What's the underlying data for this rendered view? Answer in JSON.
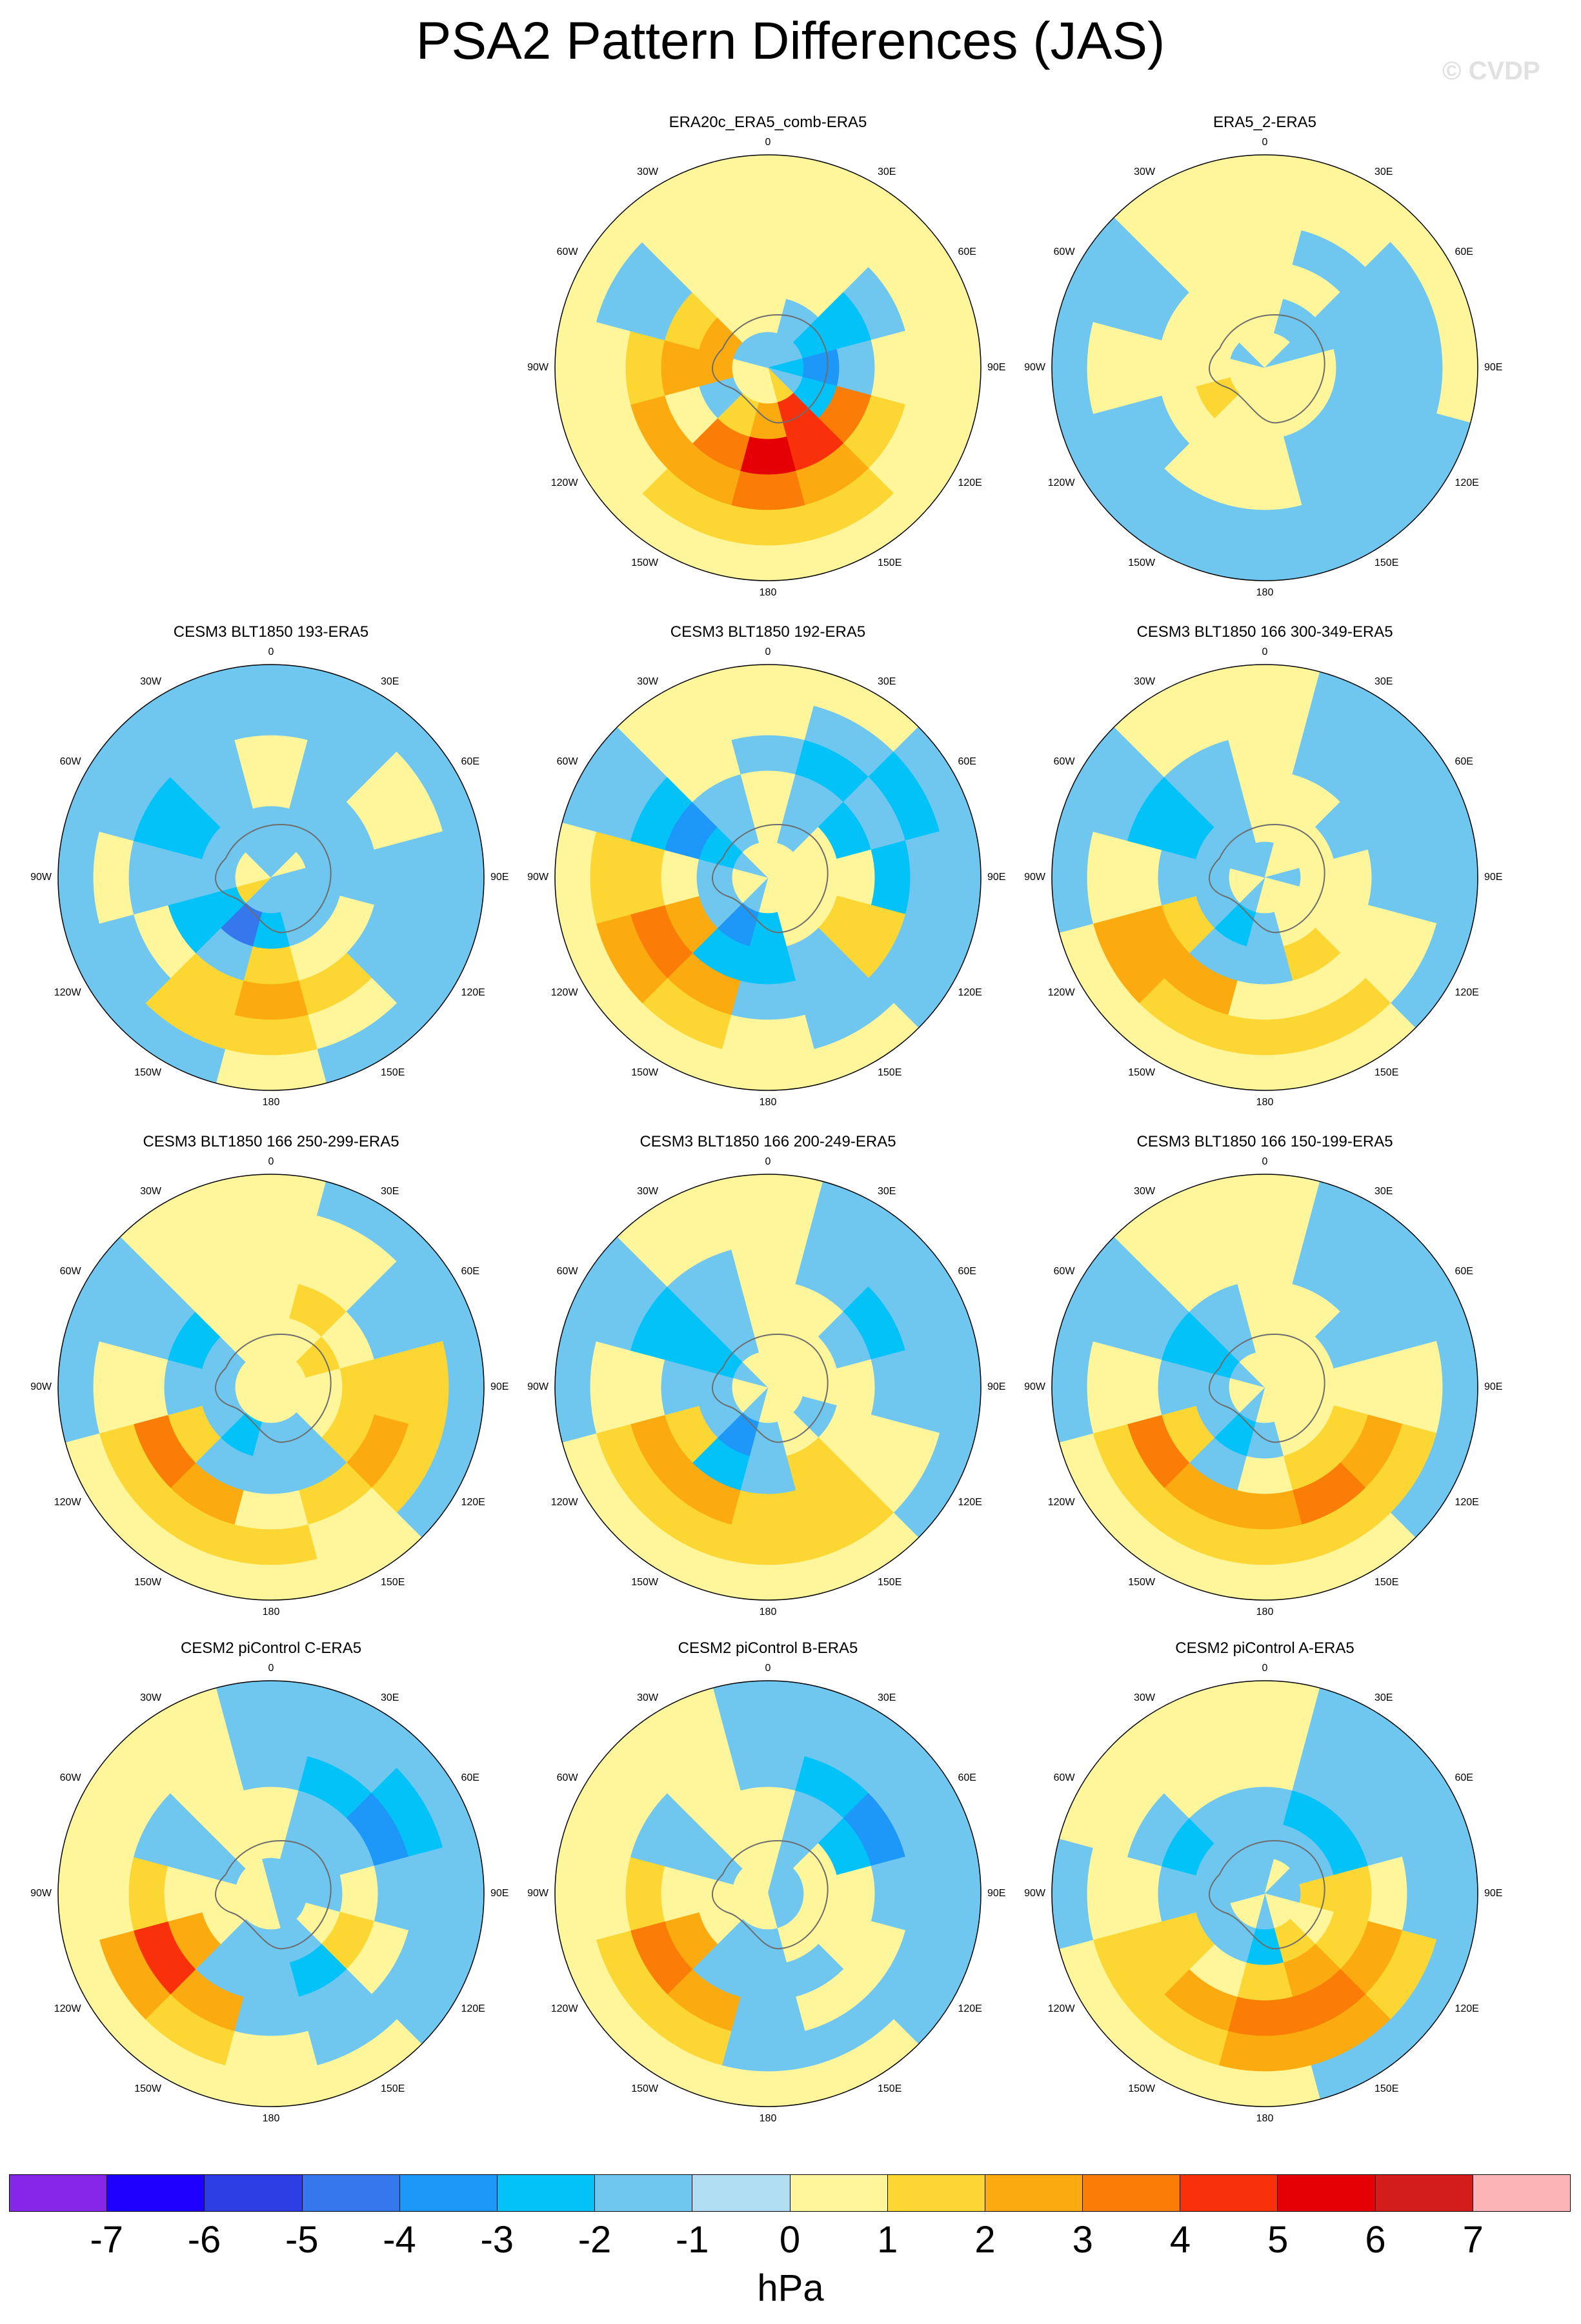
{
  "title": "PSA2 Pattern Differences (JAS)",
  "watermark": "© CVDP",
  "chart_data": {
    "type": "heatmap",
    "projection": "south polar stereographic",
    "longitude_labels": [
      "0",
      "30E",
      "60E",
      "90E",
      "120E",
      "150E",
      "180",
      "150W",
      "120W",
      "90W",
      "60W",
      "30W"
    ],
    "units": "hPa",
    "colorbar": {
      "ticks": [
        -7,
        -6,
        -5,
        -4,
        -3,
        -2,
        -1,
        0,
        1,
        2,
        3,
        4,
        5,
        6,
        7
      ],
      "colors": [
        "#8526e8",
        "#1f00ff",
        "#2b3de3",
        "#3577ec",
        "#1e98f8",
        "#02c2f8",
        "#6fc7f0",
        "#b0ddf1",
        "#fff59b",
        "#fcd632",
        "#fbab0f",
        "#fa7d07",
        "#f9310a",
        "#e40004",
        "#d21d1c",
        "#fcb4b6"
      ]
    },
    "panels": [
      {
        "title": "ERA20c_ERA5_comb-ERA5",
        "row": 0,
        "col": 1,
        "values": [
          [
            0,
            0,
            0,
            0,
            0,
            0,
            0,
            0,
            0,
            0,
            0,
            0
          ],
          [
            0,
            0,
            0,
            0,
            0,
            1,
            1,
            1,
            0,
            0,
            -1,
            0
          ],
          [
            0,
            0,
            -1,
            0,
            1,
            2,
            3,
            2,
            2,
            1,
            -1,
            0
          ],
          [
            0,
            0,
            -2,
            -1,
            3,
            4,
            5,
            3,
            0,
            2,
            1,
            0
          ],
          [
            0,
            -1,
            -2,
            -3,
            -2,
            4,
            2,
            1,
            -1,
            2,
            2,
            0
          ],
          [
            -1,
            -1,
            -1,
            -2,
            -1,
            1,
            0,
            0,
            0,
            0,
            -1,
            -1
          ]
        ]
      },
      {
        "title": "ERA5_2-ERA5",
        "row": 0,
        "col": 2,
        "values": [
          [
            0,
            0,
            0,
            0,
            -1,
            -1,
            -1,
            -1,
            -1,
            -1,
            -1,
            0
          ],
          [
            0,
            0,
            -1,
            -1,
            -1,
            -1,
            -1,
            -1,
            -1,
            0,
            -1,
            0
          ],
          [
            0,
            -1,
            -1,
            -1,
            -1,
            -1,
            0,
            0,
            -1,
            0,
            -1,
            0
          ],
          [
            0,
            0,
            -1,
            -1,
            -1,
            -1,
            0,
            0,
            0,
            0,
            0,
            0
          ],
          [
            0,
            -1,
            -1,
            0,
            0,
            0,
            0,
            0,
            1,
            0,
            0,
            0
          ],
          [
            0,
            0,
            -1,
            0,
            0,
            0,
            0,
            0,
            0,
            0,
            -1,
            0
          ]
        ]
      },
      {
        "title": "CESM3 BLT1850 193-ERA5",
        "row": 1,
        "col": 0,
        "values": [
          [
            -1,
            -1,
            -1,
            -1,
            -1,
            -1,
            0,
            -1,
            -1,
            -1,
            -1,
            -1
          ],
          [
            -1,
            -1,
            0,
            -1,
            -1,
            0,
            1,
            1,
            -1,
            0,
            -1,
            -1
          ],
          [
            0,
            -1,
            0,
            -1,
            -1,
            1,
            2,
            1,
            0,
            -1,
            -2,
            -1
          ],
          [
            0,
            -1,
            -1,
            -1,
            0,
            0,
            1,
            -1,
            -2,
            -1,
            -2,
            -1
          ],
          [
            -1,
            -1,
            -1,
            -1,
            -1,
            -1,
            -2,
            -4,
            -2,
            -1,
            -1,
            -1
          ],
          [
            -1,
            -1,
            0,
            -1,
            -1,
            -1,
            -1,
            -1,
            1,
            0,
            0,
            -1
          ]
        ]
      },
      {
        "title": "CESM3 BLT1850 192-ERA5",
        "row": 1,
        "col": 1,
        "values": [
          [
            0,
            0,
            -1,
            -1,
            -1,
            0,
            0,
            0,
            0,
            0,
            -1,
            0
          ],
          [
            0,
            -1,
            -2,
            -1,
            -1,
            -1,
            0,
            1,
            2,
            1,
            -1,
            0
          ],
          [
            -1,
            -2,
            -1,
            -2,
            1,
            -1,
            -1,
            2,
            3,
            1,
            -2,
            0
          ],
          [
            0,
            -1,
            -2,
            0,
            1,
            -1,
            -2,
            -2,
            2,
            0,
            -3,
            -1
          ],
          [
            0,
            -1,
            0,
            0,
            0,
            0,
            -2,
            -3,
            -1,
            -1,
            -2,
            -1
          ],
          [
            0,
            0,
            0,
            0,
            0,
            0,
            0,
            -1,
            0,
            0,
            -1,
            0
          ]
        ]
      },
      {
        "title": "CESM3 BLT1850 166 300-349-ERA5",
        "row": 1,
        "col": 2,
        "values": [
          [
            0,
            -1,
            -1,
            -1,
            -1,
            0,
            0,
            0,
            0,
            -1,
            -1,
            0
          ],
          [
            0,
            -1,
            -1,
            -1,
            0,
            1,
            1,
            1,
            2,
            0,
            -1,
            0
          ],
          [
            0,
            -1,
            -1,
            -1,
            0,
            0,
            0,
            2,
            2,
            0,
            -2,
            -1
          ],
          [
            0,
            0,
            -1,
            0,
            0,
            1,
            -1,
            -1,
            1,
            -1,
            -2,
            -1
          ],
          [
            0,
            0,
            0,
            0,
            0,
            0,
            -1,
            -2,
            -1,
            -1,
            -1,
            -1
          ],
          [
            -1,
            0,
            0,
            -1,
            0,
            0,
            0,
            -1,
            0,
            0,
            -1,
            -1
          ]
        ]
      },
      {
        "title": "CESM3 BLT1850 166 250-299-ERA5",
        "row": 2,
        "col": 0,
        "values": [
          [
            0,
            -1,
            -1,
            -1,
            -1,
            0,
            0,
            0,
            0,
            -1,
            -1,
            0
          ],
          [
            0,
            0,
            -1,
            1,
            1,
            0,
            1,
            1,
            1,
            0,
            -1,
            0
          ],
          [
            0,
            0,
            -1,
            1,
            2,
            1,
            0,
            2,
            3,
            0,
            -1,
            0
          ],
          [
            0,
            1,
            0,
            1,
            1,
            -1,
            -1,
            -1,
            1,
            -1,
            -2,
            0
          ],
          [
            0,
            0,
            1,
            0,
            0,
            -1,
            -1,
            -2,
            -1,
            -1,
            -1,
            0
          ],
          [
            0,
            0,
            0,
            0,
            0,
            0,
            0,
            0,
            0,
            0,
            0,
            0
          ]
        ]
      },
      {
        "title": "CESM3 BLT1850 166 200-249-ERA5",
        "row": 2,
        "col": 1,
        "values": [
          [
            0,
            -1,
            -1,
            -1,
            -1,
            0,
            0,
            0,
            0,
            -1,
            -1,
            0
          ],
          [
            0,
            -1,
            -1,
            -1,
            0,
            1,
            1,
            1,
            1,
            0,
            -1,
            0
          ],
          [
            0,
            -1,
            -2,
            -1,
            0,
            1,
            1,
            2,
            2,
            0,
            -2,
            -1
          ],
          [
            0,
            0,
            -1,
            0,
            0,
            1,
            -1,
            -2,
            1,
            -1,
            -2,
            -1
          ],
          [
            0,
            0,
            0,
            0,
            -1,
            0,
            -1,
            -3,
            -1,
            -1,
            -2,
            -1
          ],
          [
            0,
            0,
            0,
            0,
            0,
            0,
            0,
            -1,
            0,
            0,
            -1,
            0
          ]
        ]
      },
      {
        "title": "CESM3 BLT1850 166 150-199-ERA5",
        "row": 2,
        "col": 2,
        "values": [
          [
            0,
            -1,
            -1,
            -1,
            -1,
            0,
            0,
            0,
            0,
            -1,
            -1,
            0
          ],
          [
            0,
            -1,
            -1,
            0,
            1,
            1,
            1,
            1,
            1,
            0,
            -1,
            0
          ],
          [
            0,
            -1,
            -1,
            0,
            2,
            3,
            2,
            2,
            3,
            0,
            -1,
            0
          ],
          [
            0,
            0,
            -1,
            0,
            1,
            1,
            0,
            -1,
            1,
            -1,
            -2,
            -1
          ],
          [
            0,
            0,
            0,
            0,
            0,
            0,
            -1,
            -2,
            -1,
            -1,
            -2,
            -1
          ],
          [
            0,
            0,
            0,
            0,
            0,
            0,
            0,
            -1,
            0,
            0,
            -1,
            0
          ]
        ]
      },
      {
        "title": "CESM2 piControl C-ERA5",
        "row": 3,
        "col": 0,
        "values": [
          [
            -1,
            -1,
            -1,
            -1,
            -1,
            0,
            0,
            0,
            0,
            0,
            0,
            0
          ],
          [
            -1,
            -1,
            -2,
            -1,
            -1,
            -1,
            0,
            1,
            2,
            0,
            0,
            0
          ],
          [
            -1,
            -2,
            -3,
            -1,
            0,
            -1,
            -1,
            2,
            4,
            1,
            -1,
            0
          ],
          [
            0,
            -1,
            -1,
            0,
            1,
            -2,
            -1,
            -1,
            2,
            0,
            -1,
            0
          ],
          [
            0,
            -1,
            -1,
            -1,
            0,
            -1,
            -1,
            -1,
            0,
            0,
            -1,
            0
          ],
          [
            -1,
            -1,
            -1,
            -1,
            -1,
            -1,
            0,
            0,
            0,
            0,
            0,
            0
          ]
        ]
      },
      {
        "title": "CESM2 piControl B-ERA5",
        "row": 3,
        "col": 1,
        "values": [
          [
            -1,
            -1,
            -1,
            -1,
            -1,
            0,
            0,
            0,
            0,
            0,
            0,
            0
          ],
          [
            -1,
            -1,
            -1,
            -1,
            -1,
            -1,
            -1,
            1,
            1,
            0,
            0,
            0
          ],
          [
            -1,
            -2,
            -3,
            -1,
            0,
            0,
            -1,
            2,
            3,
            1,
            -1,
            0
          ],
          [
            0,
            -1,
            -2,
            0,
            0,
            -1,
            -1,
            -1,
            2,
            0,
            -1,
            0
          ],
          [
            0,
            -1,
            0,
            0,
            0,
            0,
            -1,
            -1,
            0,
            0,
            -1,
            0
          ],
          [
            0,
            -1,
            -1,
            -1,
            -1,
            -1,
            0,
            0,
            0,
            0,
            0,
            0
          ]
        ]
      },
      {
        "title": "CESM2 piControl A-ERA5",
        "row": 3,
        "col": 2,
        "values": [
          [
            0,
            -1,
            -1,
            -1,
            -1,
            -1,
            0,
            0,
            0,
            -1,
            0,
            0
          ],
          [
            0,
            -1,
            -1,
            -1,
            1,
            2,
            2,
            1,
            1,
            0,
            0,
            0
          ],
          [
            0,
            -1,
            -1,
            0,
            2,
            3,
            3,
            2,
            1,
            0,
            -1,
            0
          ],
          [
            -1,
            -2,
            -2,
            1,
            1,
            2,
            1,
            0,
            1,
            -1,
            -2,
            -1
          ],
          [
            -1,
            -1,
            -1,
            1,
            0,
            1,
            -2,
            -1,
            -1,
            -1,
            -1,
            -1
          ],
          [
            -1,
            0,
            -1,
            -1,
            0,
            0,
            -1,
            0,
            0,
            -1,
            -1,
            -1
          ]
        ]
      }
    ]
  }
}
